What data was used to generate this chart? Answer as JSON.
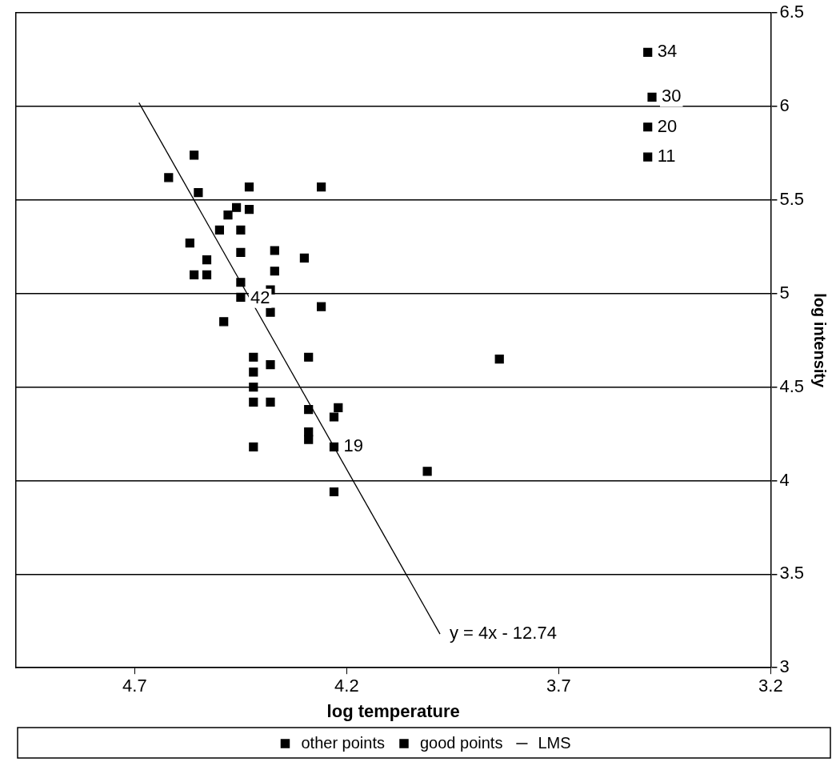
{
  "chart_data": {
    "type": "scatter",
    "xlabel": "log temperature",
    "ylabel": "log intensity",
    "xlim": [
      4.98,
      3.2
    ],
    "xticks": [
      4.7,
      4.2,
      3.7,
      3.2
    ],
    "ylim": [
      3,
      6.5
    ],
    "yticks": [
      3,
      3.5,
      4,
      4.5,
      5,
      5.5,
      6,
      6.5
    ],
    "grid": "y",
    "legend": "bottom",
    "marker": "square",
    "series": [
      {
        "name": "other points",
        "color": "#000000",
        "x": [
          3.49,
          3.49,
          3.48,
          3.49
        ],
        "values": [
          5.73,
          5.89,
          6.05,
          6.29
        ]
      },
      {
        "name": "good points",
        "color": "#000000",
        "x": [
          4.37,
          4.56,
          4.26,
          4.3,
          4.46,
          3.84,
          4.57,
          4.26,
          4.37,
          4.43,
          4.48,
          4.01,
          4.29,
          4.42,
          4.23,
          4.42,
          4.23,
          4.29,
          4.29,
          4.42,
          4.49,
          4.38,
          4.42,
          4.29,
          4.38,
          4.22,
          4.38,
          4.56,
          4.45,
          4.23,
          4.62,
          4.53,
          4.53,
          4.43,
          4.38,
          4.45,
          4.5,
          4.45,
          4.55,
          4.45,
          4.42
        ],
        "values": [
          5.23,
          5.74,
          4.93,
          5.19,
          5.46,
          4.65,
          5.27,
          5.57,
          5.12,
          5.45,
          5.42,
          4.05,
          4.26,
          4.58,
          3.94,
          4.18,
          4.18,
          4.38,
          4.22,
          4.42,
          4.85,
          5.02,
          4.66,
          4.66,
          4.9,
          4.39,
          4.42,
          5.1,
          5.22,
          4.34,
          5.62,
          5.1,
          5.18,
          5.57,
          4.62,
          5.06,
          5.34,
          5.34,
          5.54,
          4.98,
          4.5
        ]
      },
      {
        "name": "LMS",
        "type": "line",
        "color": "#000000",
        "marker": "none",
        "x": [
          4.69,
          3.98
        ],
        "values": [
          6.02,
          3.18
        ]
      }
    ],
    "annotations": [
      {
        "text": "34",
        "x": 3.49,
        "y": 6.29
      },
      {
        "text": "30",
        "x": 3.48,
        "y": 6.05
      },
      {
        "text": "20",
        "x": 3.49,
        "y": 5.89
      },
      {
        "text": "11",
        "x": 3.49,
        "y": 5.73
      },
      {
        "text": "42",
        "x": 4.45,
        "y": 5.06
      },
      {
        "text": "19",
        "x": 4.23,
        "y": 4.18
      },
      {
        "text": "y = 4x - 12.74",
        "x": 3.98,
        "y": 3.18
      }
    ]
  }
}
